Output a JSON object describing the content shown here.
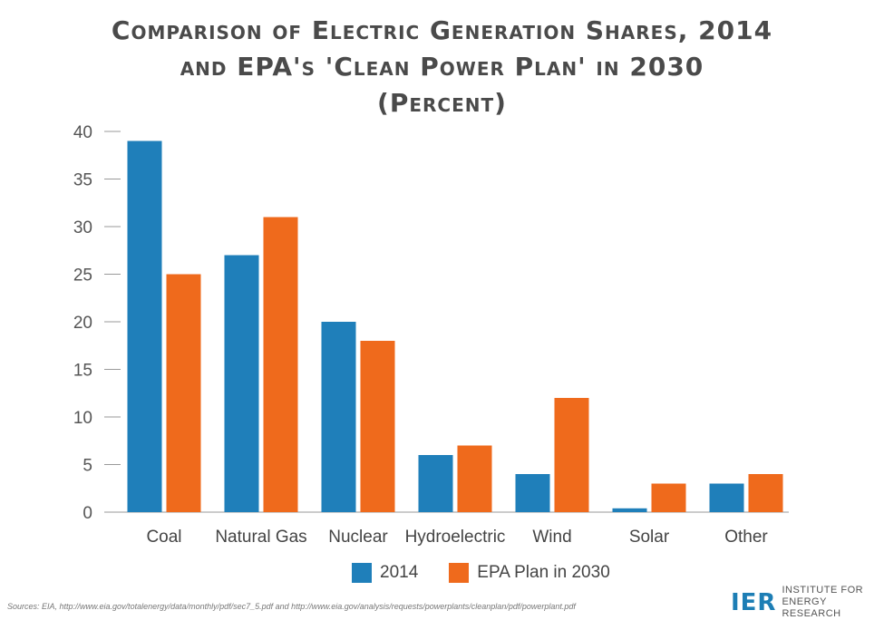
{
  "chart_data": {
    "type": "bar",
    "title_lines": [
      "Comparison of Electric Generation Shares, 2014",
      "and EPA's 'Clean Power Plan' in 2030",
      "(Percent)"
    ],
    "categories": [
      "Coal",
      "Natural Gas",
      "Nuclear",
      "Hydroelectric",
      "Wind",
      "Solar",
      "Other"
    ],
    "series": [
      {
        "name": "2014",
        "color": "#1f7fba",
        "values": [
          39,
          27,
          20,
          6,
          4,
          0.4,
          3
        ]
      },
      {
        "name": "EPA Plan in 2030",
        "color": "#ef6a1c",
        "values": [
          25,
          31,
          18,
          7,
          12,
          3,
          4
        ]
      }
    ],
    "yticks": [
      0,
      5,
      10,
      15,
      20,
      25,
      30,
      35,
      40
    ],
    "ylim": [
      0,
      40
    ],
    "grid": false,
    "legend_position": "bottom"
  },
  "footer": {
    "sources": "Sources: EIA, http://www.eia.gov/totalenergy/data/monthly/pdf/sec7_5.pdf and http://www.eia.gov/analysis/requests/powerplants/cleanplan/pdf/powerplant.pdf",
    "logo_mark": "IER",
    "logo_line1": "INSTITUTE FOR",
    "logo_line2": "ENERGY RESEARCH"
  }
}
